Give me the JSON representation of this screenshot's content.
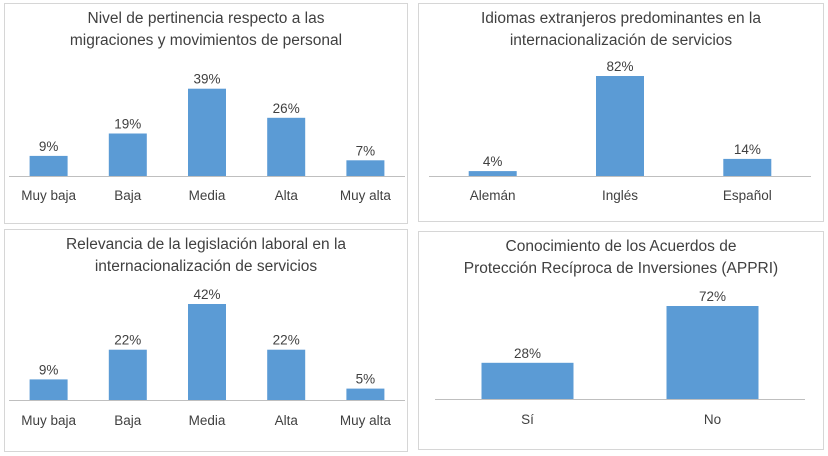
{
  "colors": {
    "bar": "#5b9bd5",
    "axis": "#bfbfbf",
    "text": "#404040",
    "border": "#d6d6d6"
  },
  "chart_data": [
    {
      "type": "bar",
      "title": [
        "Nivel de pertinencia respecto a las",
        "migraciones y movimientos de personal"
      ],
      "categories": [
        "Muy baja",
        "Baja",
        "Media",
        "Alta",
        "Muy alta"
      ],
      "values": [
        9,
        19,
        39,
        26,
        7
      ],
      "value_labels": [
        "9%",
        "19%",
        "39%",
        "26%",
        "7%"
      ],
      "unit": "%",
      "ylim": [
        0,
        42
      ],
      "grid": false,
      "legend": "none"
    },
    {
      "type": "bar",
      "title": [
        "Idiomas extranjeros predominantes en la",
        "internacionalización de servicios"
      ],
      "categories": [
        "Alemán",
        "Inglés",
        "Español"
      ],
      "values": [
        4,
        82,
        14
      ],
      "value_labels": [
        "4%",
        "82%",
        "14%"
      ],
      "unit": "%",
      "ylim": [
        0,
        82
      ],
      "grid": false,
      "legend": "none"
    },
    {
      "type": "bar",
      "title": [
        "Relevancia de la legislación laboral en la",
        "internacionalización de servicios"
      ],
      "categories": [
        "Muy baja",
        "Baja",
        "Media",
        "Alta",
        "Muy alta"
      ],
      "values": [
        9,
        22,
        42,
        22,
        5
      ],
      "value_labels": [
        "9%",
        "22%",
        "42%",
        "22%",
        "5%"
      ],
      "unit": "%",
      "ylim": [
        0,
        42
      ],
      "grid": false,
      "legend": "none"
    },
    {
      "type": "bar",
      "title": [
        "Conocimiento de los Acuerdos de",
        "Protección Recíproca de Inversiones (APPRI)"
      ],
      "categories": [
        "Sí",
        "No"
      ],
      "values": [
        28,
        72
      ],
      "value_labels": [
        "28%",
        "72%"
      ],
      "unit": "%",
      "ylim": [
        0,
        72
      ],
      "grid": false,
      "legend": "none"
    }
  ]
}
